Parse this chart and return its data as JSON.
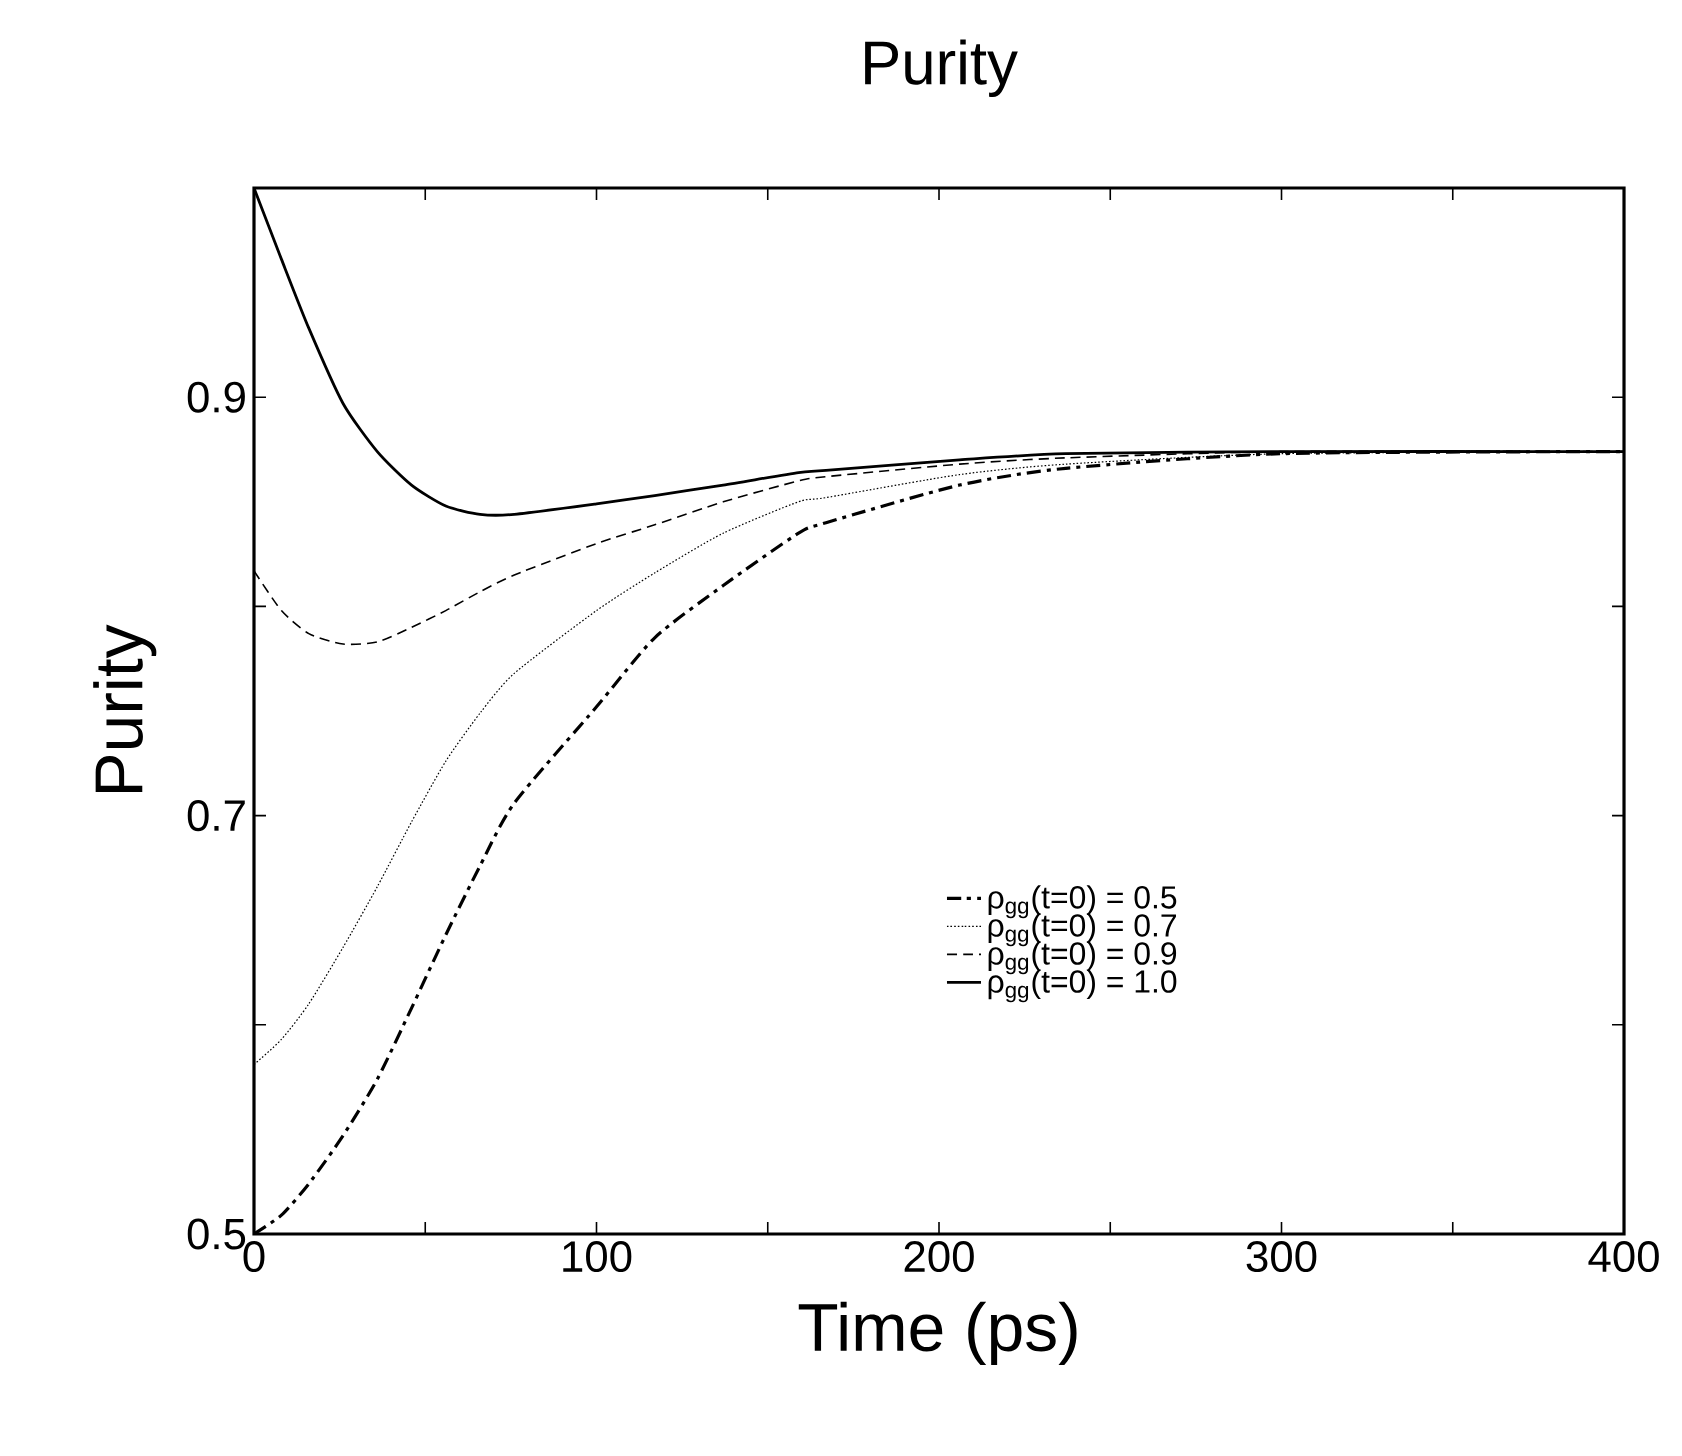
{
  "chart_data": {
    "type": "line",
    "title": "Purity",
    "xlabel": "Time (ps)",
    "ylabel": "Purity",
    "x": [
      0,
      8,
      16,
      26,
      36,
      46,
      56,
      66,
      76,
      100,
      117,
      137,
      159,
      167,
      206,
      237,
      300,
      400
    ],
    "xlim": [
      0,
      400
    ],
    "xticks": [
      0,
      100,
      200,
      300,
      400
    ],
    "ylim": [
      0.5,
      1.0
    ],
    "yticks": [
      0.5,
      {
        "value": 0.6,
        "label": null
      },
      0.7,
      {
        "value": 0.8,
        "label": null
      },
      0.9,
      {
        "value": 1.0,
        "label": null
      }
    ],
    "grid": false,
    "legend": "right",
    "marker": "none",
    "series": [
      {
        "name": "ρ$_{gg}$(t=0) = 0.5",
        "color": "#000000",
        "line_style": "dashdot",
        "values": [
          0.5,
          0.509,
          0.524,
          0.547,
          0.574,
          0.608,
          0.643,
          0.676,
          0.706,
          0.752,
          0.785,
          0.81,
          0.835,
          0.84,
          0.858,
          0.866,
          0.873,
          0.874
        ]
      },
      {
        "name": "ρ$_{gg}$(t=0) = 0.7",
        "color": "#000000",
        "line_style": "dotted",
        "values": [
          0.581,
          0.593,
          0.61,
          0.637,
          0.666,
          0.697,
          0.726,
          0.749,
          0.768,
          0.798,
          0.816,
          0.835,
          0.85,
          0.852,
          0.863,
          0.868,
          0.873,
          0.874
        ]
      },
      {
        "name": "ρ$_{gg}$(t=0) = 0.9",
        "color": "#000000",
        "line_style": "dashed",
        "values": [
          0.817,
          0.798,
          0.787,
          0.782,
          0.783,
          0.79,
          0.798,
          0.807,
          0.815,
          0.83,
          0.839,
          0.85,
          0.86,
          0.862,
          0.868,
          0.871,
          0.874,
          0.874
        ]
      },
      {
        "name": "ρ$_{gg}$(t=0) = 1.0",
        "color": "#000000",
        "line_style": "solid",
        "values": [
          1.0,
          0.966,
          0.933,
          0.897,
          0.874,
          0.858,
          0.848,
          0.844,
          0.844,
          0.849,
          0.853,
          0.858,
          0.864,
          0.865,
          0.87,
          0.873,
          0.874,
          0.874
        ]
      }
    ]
  }
}
